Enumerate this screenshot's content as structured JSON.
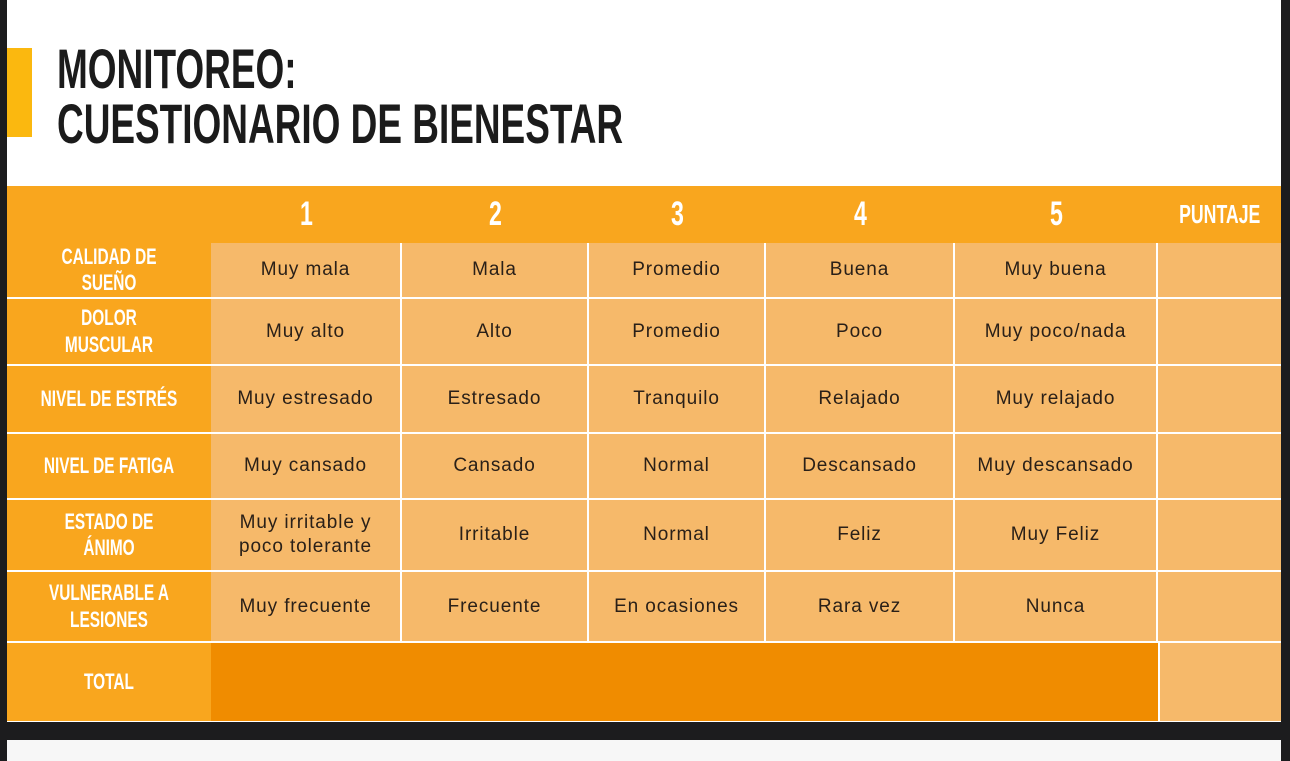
{
  "header": {
    "title_lines": [
      "MONITOREO:",
      "CUESTIONARIO DE BIENESTAR"
    ]
  },
  "table": {
    "columns": [
      "1",
      "2",
      "3",
      "4",
      "5",
      "PUNTAJE"
    ],
    "rows": [
      {
        "label": "CALIDAD DE SUEÑO",
        "cells": [
          "Muy mala",
          "Mala",
          "Promedio",
          "Buena",
          "Muy buena"
        ]
      },
      {
        "label": "DOLOR MUSCULAR",
        "cells": [
          "Muy alto",
          "Alto",
          "Promedio",
          "Poco",
          "Muy poco/nada"
        ]
      },
      {
        "label": "NIVEL DE ESTRÉS",
        "cells": [
          "Muy estresado",
          "Estresado",
          "Tranquilo",
          "Relajado",
          "Muy relajado"
        ]
      },
      {
        "label": "NIVEL DE FATIGA",
        "cells": [
          "Muy cansado",
          "Cansado",
          "Normal",
          "Descansado",
          "Muy descansado"
        ]
      },
      {
        "label": "ESTADO DE ÁNIMO",
        "cells": [
          "Muy irritable y poco tolerante",
          "Irritable",
          "Normal",
          "Feliz",
          "Muy Feliz"
        ]
      },
      {
        "label": "VULNERABLE A LESIONES",
        "cells": [
          "Muy frecuente",
          "Frecuente",
          "En ocasiones",
          "Rara vez",
          "Nunca"
        ]
      }
    ],
    "total": "TOTAL"
  }
}
